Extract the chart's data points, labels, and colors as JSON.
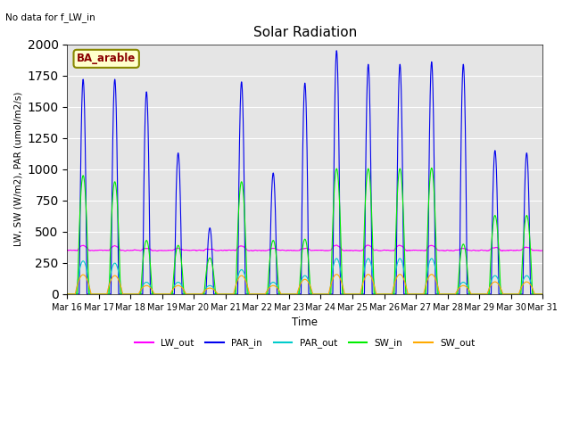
{
  "title": "Solar Radiation",
  "top_left_text": "No data for f_LW_in",
  "annotation_text": "BA_arable",
  "xlabel": "Time",
  "ylabel": "LW, SW (W/m2), PAR (umol/m2/s)",
  "ylim": [
    0,
    2000
  ],
  "background_color": "#e5e5e5",
  "colors": {
    "LW_out": "#ff00ff",
    "PAR_in": "#0000ee",
    "PAR_out": "#00cccc",
    "SW_in": "#00ee00",
    "SW_out": "#ffaa00"
  },
  "xtick_labels": [
    "Mar 16",
    "Mar 17",
    "Mar 18",
    "Mar 19",
    "Mar 20",
    "Mar 21",
    "Mar 22",
    "Mar 23",
    "Mar 24",
    "Mar 25",
    "Mar 26",
    "Mar 27",
    "Mar 28",
    "Mar 29",
    "Mar 30",
    "Mar 31"
  ],
  "par_in_peaks": [
    1720,
    1720,
    1620,
    1130,
    530,
    1700,
    970,
    1690,
    1950,
    1840,
    1840,
    1860,
    1840,
    1150,
    1130
  ],
  "sw_in_peaks": [
    950,
    900,
    430,
    390,
    290,
    900,
    430,
    440,
    1005,
    1005,
    1005,
    1010,
    400,
    630,
    630
  ],
  "sw_out_peaks": [
    155,
    148,
    68,
    68,
    48,
    148,
    68,
    118,
    158,
    158,
    158,
    158,
    68,
    98,
    98
  ],
  "par_out_peaks": [
    265,
    248,
    95,
    95,
    68,
    195,
    95,
    148,
    285,
    285,
    285,
    285,
    95,
    148,
    148
  ],
  "lw_out_base": 350,
  "grid_color": "#ffffff",
  "figsize": [
    6.4,
    4.8
  ],
  "dpi": 100
}
